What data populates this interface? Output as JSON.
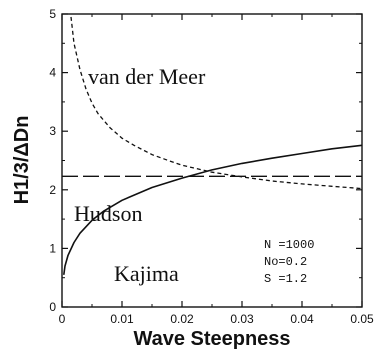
{
  "chart_data": {
    "type": "line",
    "title": "",
    "xlabel": "Wave Steepness",
    "ylabel": "H1/3/ΔDn",
    "xlim": [
      0,
      0.05
    ],
    "ylim": [
      0,
      5
    ],
    "xticks": [
      "0",
      "0.01",
      "0.02",
      "0.03",
      "0.04",
      "0.05"
    ],
    "yticks": [
      "0",
      "1",
      "2",
      "3",
      "4",
      "5"
    ],
    "grid": false,
    "legend": "none",
    "series": [
      {
        "name": "van der Meer",
        "style": "dotted",
        "x": [
          0.0015,
          0.002,
          0.003,
          0.004,
          0.005,
          0.006,
          0.008,
          0.01,
          0.012,
          0.015,
          0.018,
          0.02,
          0.025,
          0.03,
          0.035,
          0.04,
          0.045,
          0.05
        ],
        "y": [
          4.95,
          4.5,
          4.05,
          3.72,
          3.48,
          3.3,
          3.06,
          2.88,
          2.76,
          2.6,
          2.49,
          2.42,
          2.3,
          2.22,
          2.15,
          2.1,
          2.06,
          2.02
        ]
      },
      {
        "name": "Hudson",
        "style": "dashed",
        "x": [
          0,
          0.05
        ],
        "y": [
          2.23,
          2.23
        ]
      },
      {
        "name": "Kajima",
        "style": "solid",
        "x": [
          0.0003,
          0.0005,
          0.001,
          0.002,
          0.003,
          0.005,
          0.007,
          0.01,
          0.015,
          0.02,
          0.025,
          0.03,
          0.035,
          0.04,
          0.045,
          0.05
        ],
        "y": [
          0.55,
          0.7,
          0.88,
          1.1,
          1.26,
          1.48,
          1.64,
          1.82,
          2.04,
          2.2,
          2.34,
          2.45,
          2.54,
          2.62,
          2.7,
          2.76
        ]
      }
    ],
    "annotations": {
      "van_der_meer": "van der Meer",
      "hudson": "Hudson",
      "kajima": "Kajima",
      "params": [
        "N  =1000",
        "No=0.2",
        "S  =1.2"
      ]
    }
  }
}
